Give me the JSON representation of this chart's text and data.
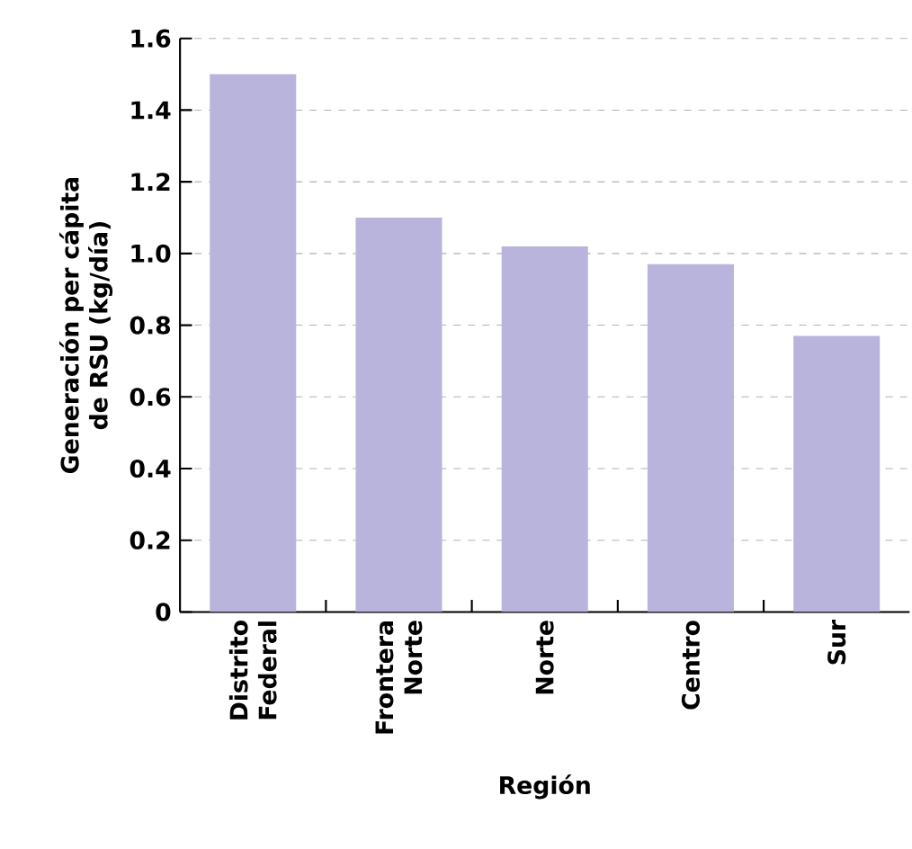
{
  "chart_data": {
    "type": "bar",
    "xlabel": "Región",
    "ylabel": "Generación per cápita de RSU (kg/día)",
    "categories": [
      "Distrito Federal",
      "Frontera Norte",
      "Norte",
      "Centro",
      "Sur"
    ],
    "values": [
      1.5,
      1.1,
      1.02,
      0.97,
      0.77
    ],
    "color": "#b8b4dc",
    "ylim": [
      0,
      1.6
    ],
    "yticks": [
      0,
      {
        "value": 0.2,
        "label": "0.2"
      },
      {
        "value": 0.4,
        "label": "0.4"
      },
      {
        "value": 0.6,
        "label": "0.6"
      },
      {
        "value": 0.8,
        "label": "0.8"
      },
      {
        "value": 1.0,
        "label": "1.0"
      },
      {
        "value": 1.2,
        "label": "1.2"
      },
      {
        "value": 1.4,
        "label": "1.4"
      },
      {
        "value": 1.6,
        "label": "1.6"
      }
    ],
    "grid": "y"
  }
}
